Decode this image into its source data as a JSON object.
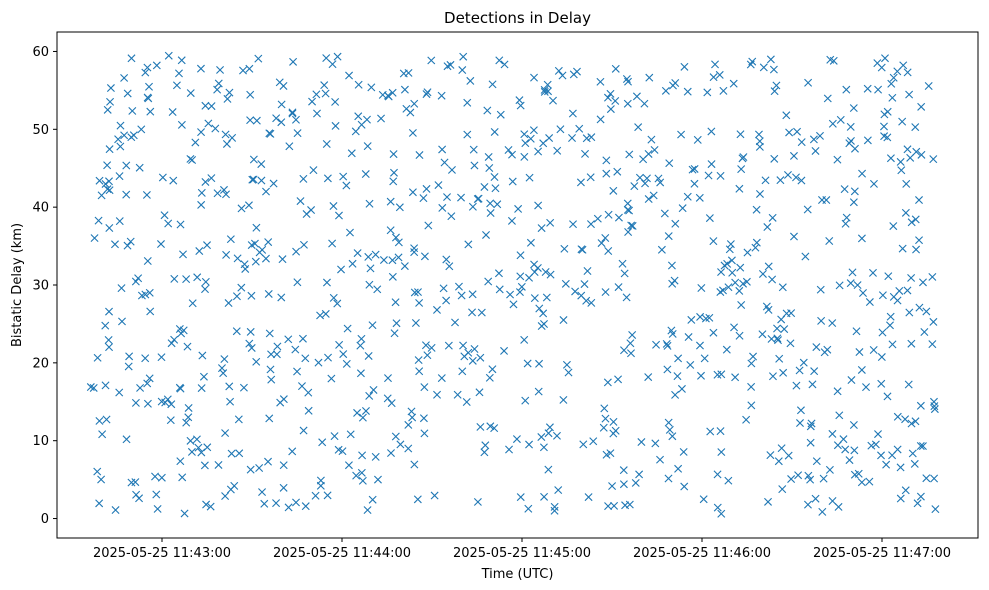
{
  "chart_data": {
    "type": "scatter",
    "title": "Detections in Delay",
    "xlabel": "Time (UTC)",
    "ylabel": "Bistatic Delay (km)",
    "marker": "x",
    "color": "#1f77b4",
    "grid": false,
    "legend": "none",
    "xlim": [
      "2025-05-25 11:42:25",
      "2025-05-25 11:47:32"
    ],
    "ylim": [
      -2.5,
      62.5
    ],
    "xticks": [
      "2025-05-25 11:43:00",
      "2025-05-25 11:44:00",
      "2025-05-25 11:45:00",
      "2025-05-25 11:46:00",
      "2025-05-25 11:47:00"
    ],
    "yticks": [
      0,
      10,
      20,
      30,
      40,
      50,
      60
    ],
    "x_start": "2025-05-25 11:42:36",
    "x_end": "2025-05-25 11:47:18",
    "point_count": 980,
    "seed": 20250525
  }
}
